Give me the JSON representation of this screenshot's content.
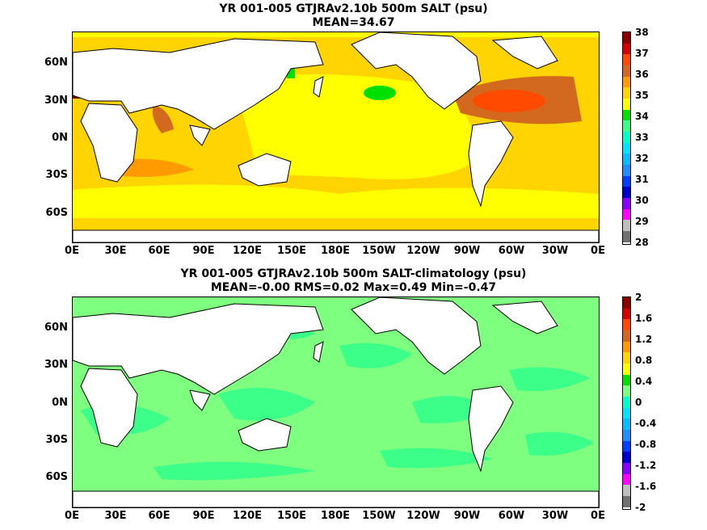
{
  "panel_top": {
    "title_line1": "YR 001-005 GTJRAv2.10b 500m SALT (psu)",
    "title_line2": "MEAN=34.67",
    "y_ticks": [
      "60N",
      "30N",
      "0N",
      "30S",
      "60S"
    ],
    "x_ticks": [
      "0E",
      "30E",
      "60E",
      "90E",
      "120E",
      "150E",
      "180E",
      "150W",
      "120W",
      "90W",
      "60W",
      "30W",
      "0E"
    ],
    "colorbar_labels": [
      "38",
      "37",
      "36",
      "35",
      "34",
      "33",
      "32",
      "31",
      "30",
      "29",
      "28"
    ],
    "colorbar_colors": [
      "#8b0000",
      "#d60000",
      "#ff4a00",
      "#d2691e",
      "#ff9a00",
      "#ffd400",
      "#ffff00",
      "#00e000",
      "#3cff8a",
      "#00ffcc",
      "#00e5ff",
      "#00bfff",
      "#1e90ff",
      "#0040ff",
      "#0000cc",
      "#8a00ff",
      "#ff00ff",
      "#bfbfbf",
      "#707070"
    ]
  },
  "panel_bottom": {
    "title_line1": "YR 001-005 GTJRAv2.10b 500m SALT-climatology (psu)",
    "title_line2": "MEAN=-0.00   RMS=0.02   Max=0.49   Min=-0.47",
    "y_ticks": [
      "60N",
      "30N",
      "0N",
      "30S",
      "60S"
    ],
    "x_ticks": [
      "0E",
      "30E",
      "60E",
      "90E",
      "120E",
      "150E",
      "180E",
      "150W",
      "120W",
      "90W",
      "60W",
      "30W",
      "0E"
    ],
    "colorbar_labels": [
      "2",
      "1.6",
      "1.2",
      "0.8",
      "0.4",
      "0",
      "-0.4",
      "-0.8",
      "-1.2",
      "-1.6",
      "-2"
    ],
    "colorbar_colors": [
      "#8b0000",
      "#d60000",
      "#ff4a00",
      "#d2691e",
      "#ff9a00",
      "#ffd400",
      "#ffff00",
      "#00e000",
      "#7fff7f",
      "#00ffcc",
      "#00e5ff",
      "#00bfff",
      "#1e90ff",
      "#0040ff",
      "#0000cc",
      "#8a00ff",
      "#ff00ff",
      "#bfbfbf",
      "#707070"
    ]
  },
  "colors": {
    "ocean_top_base": "#ffd400",
    "ocean_top_fresh": "#ffff00",
    "ocean_top_salty": "#ff9a00",
    "ocean_top_salty2": "#d2691e",
    "ocean_top_max": "#ff4a00",
    "ocean_top_min": "#00e000",
    "ocean_bottom_base": "#7fff7f",
    "ocean_bottom_alt": "#3cff8a",
    "land": "#ffffff",
    "coast": "#000000"
  }
}
